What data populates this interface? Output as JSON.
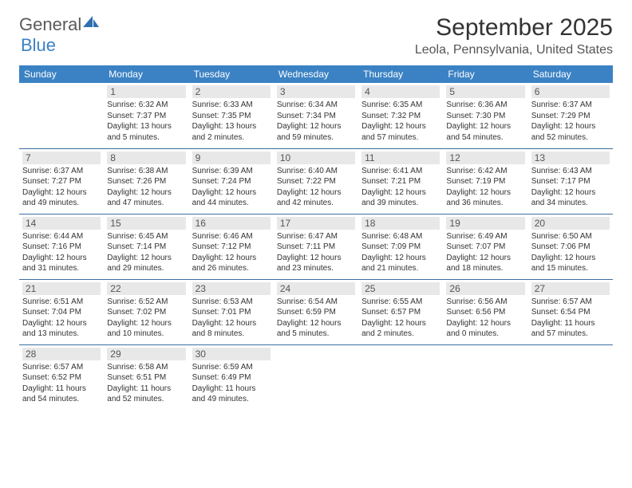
{
  "logo": {
    "main": "General",
    "accent": "Blue"
  },
  "title": "September 2025",
  "location": "Leola, Pennsylvania, United States",
  "colors": {
    "header_bg": "#3b82c4",
    "header_text": "#ffffff",
    "daynum_bg": "#e8e8e8",
    "border": "#3b6fa0",
    "text": "#333333",
    "logo_gray": "#5a5a5a",
    "logo_blue": "#3b82c4"
  },
  "weekdays": [
    "Sunday",
    "Monday",
    "Tuesday",
    "Wednesday",
    "Thursday",
    "Friday",
    "Saturday"
  ],
  "grid": [
    [
      {
        "day": "",
        "sunrise": "",
        "sunset": "",
        "daylight": ""
      },
      {
        "day": "1",
        "sunrise": "Sunrise: 6:32 AM",
        "sunset": "Sunset: 7:37 PM",
        "daylight": "Daylight: 13 hours and 5 minutes."
      },
      {
        "day": "2",
        "sunrise": "Sunrise: 6:33 AM",
        "sunset": "Sunset: 7:35 PM",
        "daylight": "Daylight: 13 hours and 2 minutes."
      },
      {
        "day": "3",
        "sunrise": "Sunrise: 6:34 AM",
        "sunset": "Sunset: 7:34 PM",
        "daylight": "Daylight: 12 hours and 59 minutes."
      },
      {
        "day": "4",
        "sunrise": "Sunrise: 6:35 AM",
        "sunset": "Sunset: 7:32 PM",
        "daylight": "Daylight: 12 hours and 57 minutes."
      },
      {
        "day": "5",
        "sunrise": "Sunrise: 6:36 AM",
        "sunset": "Sunset: 7:30 PM",
        "daylight": "Daylight: 12 hours and 54 minutes."
      },
      {
        "day": "6",
        "sunrise": "Sunrise: 6:37 AM",
        "sunset": "Sunset: 7:29 PM",
        "daylight": "Daylight: 12 hours and 52 minutes."
      }
    ],
    [
      {
        "day": "7",
        "sunrise": "Sunrise: 6:37 AM",
        "sunset": "Sunset: 7:27 PM",
        "daylight": "Daylight: 12 hours and 49 minutes."
      },
      {
        "day": "8",
        "sunrise": "Sunrise: 6:38 AM",
        "sunset": "Sunset: 7:26 PM",
        "daylight": "Daylight: 12 hours and 47 minutes."
      },
      {
        "day": "9",
        "sunrise": "Sunrise: 6:39 AM",
        "sunset": "Sunset: 7:24 PM",
        "daylight": "Daylight: 12 hours and 44 minutes."
      },
      {
        "day": "10",
        "sunrise": "Sunrise: 6:40 AM",
        "sunset": "Sunset: 7:22 PM",
        "daylight": "Daylight: 12 hours and 42 minutes."
      },
      {
        "day": "11",
        "sunrise": "Sunrise: 6:41 AM",
        "sunset": "Sunset: 7:21 PM",
        "daylight": "Daylight: 12 hours and 39 minutes."
      },
      {
        "day": "12",
        "sunrise": "Sunrise: 6:42 AM",
        "sunset": "Sunset: 7:19 PM",
        "daylight": "Daylight: 12 hours and 36 minutes."
      },
      {
        "day": "13",
        "sunrise": "Sunrise: 6:43 AM",
        "sunset": "Sunset: 7:17 PM",
        "daylight": "Daylight: 12 hours and 34 minutes."
      }
    ],
    [
      {
        "day": "14",
        "sunrise": "Sunrise: 6:44 AM",
        "sunset": "Sunset: 7:16 PM",
        "daylight": "Daylight: 12 hours and 31 minutes."
      },
      {
        "day": "15",
        "sunrise": "Sunrise: 6:45 AM",
        "sunset": "Sunset: 7:14 PM",
        "daylight": "Daylight: 12 hours and 29 minutes."
      },
      {
        "day": "16",
        "sunrise": "Sunrise: 6:46 AM",
        "sunset": "Sunset: 7:12 PM",
        "daylight": "Daylight: 12 hours and 26 minutes."
      },
      {
        "day": "17",
        "sunrise": "Sunrise: 6:47 AM",
        "sunset": "Sunset: 7:11 PM",
        "daylight": "Daylight: 12 hours and 23 minutes."
      },
      {
        "day": "18",
        "sunrise": "Sunrise: 6:48 AM",
        "sunset": "Sunset: 7:09 PM",
        "daylight": "Daylight: 12 hours and 21 minutes."
      },
      {
        "day": "19",
        "sunrise": "Sunrise: 6:49 AM",
        "sunset": "Sunset: 7:07 PM",
        "daylight": "Daylight: 12 hours and 18 minutes."
      },
      {
        "day": "20",
        "sunrise": "Sunrise: 6:50 AM",
        "sunset": "Sunset: 7:06 PM",
        "daylight": "Daylight: 12 hours and 15 minutes."
      }
    ],
    [
      {
        "day": "21",
        "sunrise": "Sunrise: 6:51 AM",
        "sunset": "Sunset: 7:04 PM",
        "daylight": "Daylight: 12 hours and 13 minutes."
      },
      {
        "day": "22",
        "sunrise": "Sunrise: 6:52 AM",
        "sunset": "Sunset: 7:02 PM",
        "daylight": "Daylight: 12 hours and 10 minutes."
      },
      {
        "day": "23",
        "sunrise": "Sunrise: 6:53 AM",
        "sunset": "Sunset: 7:01 PM",
        "daylight": "Daylight: 12 hours and 8 minutes."
      },
      {
        "day": "24",
        "sunrise": "Sunrise: 6:54 AM",
        "sunset": "Sunset: 6:59 PM",
        "daylight": "Daylight: 12 hours and 5 minutes."
      },
      {
        "day": "25",
        "sunrise": "Sunrise: 6:55 AM",
        "sunset": "Sunset: 6:57 PM",
        "daylight": "Daylight: 12 hours and 2 minutes."
      },
      {
        "day": "26",
        "sunrise": "Sunrise: 6:56 AM",
        "sunset": "Sunset: 6:56 PM",
        "daylight": "Daylight: 12 hours and 0 minutes."
      },
      {
        "day": "27",
        "sunrise": "Sunrise: 6:57 AM",
        "sunset": "Sunset: 6:54 PM",
        "daylight": "Daylight: 11 hours and 57 minutes."
      }
    ],
    [
      {
        "day": "28",
        "sunrise": "Sunrise: 6:57 AM",
        "sunset": "Sunset: 6:52 PM",
        "daylight": "Daylight: 11 hours and 54 minutes."
      },
      {
        "day": "29",
        "sunrise": "Sunrise: 6:58 AM",
        "sunset": "Sunset: 6:51 PM",
        "daylight": "Daylight: 11 hours and 52 minutes."
      },
      {
        "day": "30",
        "sunrise": "Sunrise: 6:59 AM",
        "sunset": "Sunset: 6:49 PM",
        "daylight": "Daylight: 11 hours and 49 minutes."
      },
      {
        "day": "",
        "sunrise": "",
        "sunset": "",
        "daylight": ""
      },
      {
        "day": "",
        "sunrise": "",
        "sunset": "",
        "daylight": ""
      },
      {
        "day": "",
        "sunrise": "",
        "sunset": "",
        "daylight": ""
      },
      {
        "day": "",
        "sunrise": "",
        "sunset": "",
        "daylight": ""
      }
    ]
  ]
}
